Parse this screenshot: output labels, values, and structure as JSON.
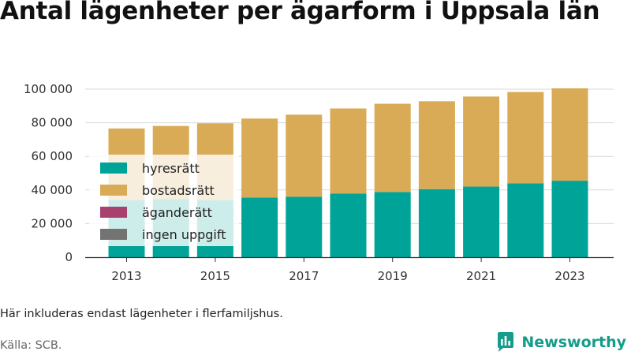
{
  "title": "Antal lägenheter per ägarform i Uppsala län",
  "note": "Här inkluderas endast lägenheter i flerfamiljshus.",
  "source": "Källa: SCB.",
  "brand": "Newsworthy",
  "colors": {
    "hyresratt": "#00a398",
    "bostadsratt": "#d9ab57",
    "aganderatt": "#a8416e",
    "ingen_uppgift": "#737373",
    "grid": "#d9d9d9",
    "brand": "#159c8a"
  },
  "chart_data": {
    "type": "bar",
    "stacked": true,
    "categories": [
      "2013",
      "2014",
      "2015",
      "2016",
      "2017",
      "2018",
      "2019",
      "2020",
      "2021",
      "2022",
      "2023"
    ],
    "x_tick_labels": [
      "2013",
      "2015",
      "2017",
      "2019",
      "2021",
      "2023"
    ],
    "y_tick_labels": [
      "0",
      "20 000",
      "40 000",
      "60 000",
      "80 000",
      "100 000"
    ],
    "y_ticks": [
      0,
      20000,
      40000,
      60000,
      80000,
      100000
    ],
    "ylim": [
      0,
      105000
    ],
    "grid": true,
    "legend_position": "top-left",
    "series": [
      {
        "name": "hyresrätt",
        "color_key": "hyresratt",
        "values": [
          34000,
          34500,
          34000,
          35500,
          36000,
          37800,
          38800,
          40500,
          42000,
          44000,
          45500
        ]
      },
      {
        "name": "bostadsrätt",
        "color_key": "bostadsratt",
        "values": [
          42600,
          43600,
          45700,
          47000,
          48800,
          50700,
          52500,
          52300,
          53600,
          54300,
          55000
        ]
      },
      {
        "name": "äganderätt",
        "color_key": "aganderatt",
        "values": [
          0,
          0,
          0,
          0,
          0,
          0,
          0,
          0,
          0,
          0,
          0
        ]
      },
      {
        "name": "ingen uppgift",
        "color_key": "ingen_uppgift",
        "values": [
          0,
          0,
          0,
          0,
          0,
          0,
          0,
          0,
          0,
          0,
          0
        ]
      }
    ]
  }
}
